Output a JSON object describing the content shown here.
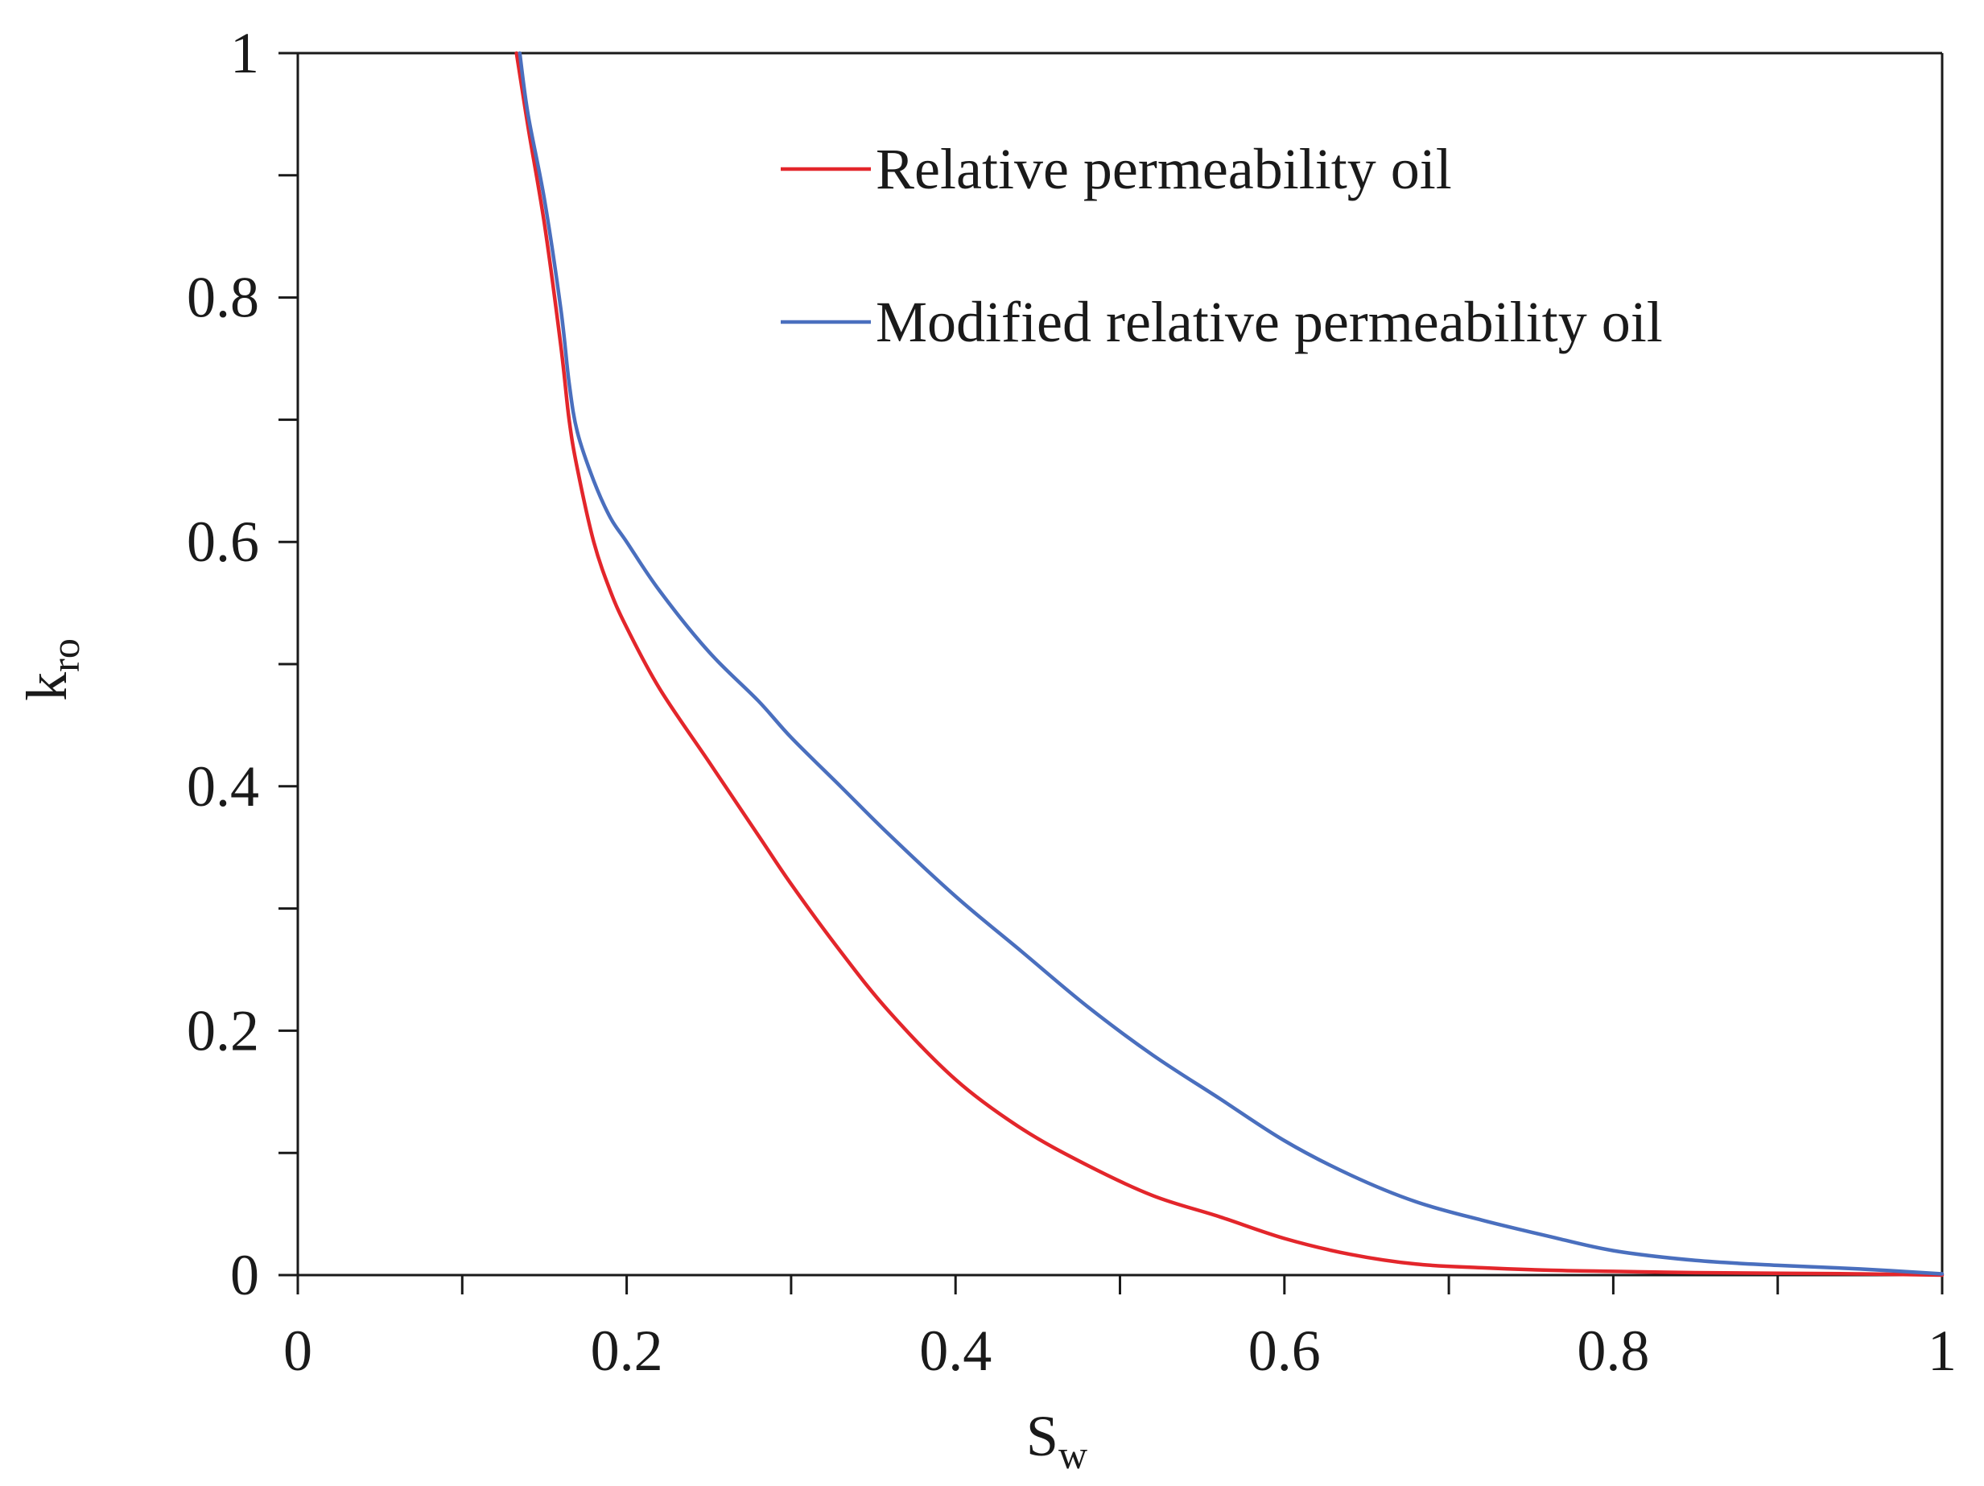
{
  "chart_data": {
    "type": "line",
    "title": "",
    "xlabel": {
      "main": "S",
      "sub": "w"
    },
    "ylabel": {
      "main": "k",
      "sub": "ro"
    },
    "xlim": [
      0,
      1
    ],
    "ylim": [
      0,
      1
    ],
    "x_ticks": [
      0,
      0.2,
      0.4,
      0.6,
      0.8,
      1
    ],
    "x_tick_labels": [
      "0",
      "0.2",
      "0.4",
      "0.6",
      "0.8",
      "1"
    ],
    "x_minor_ticks": [
      0.1,
      0.3,
      0.5,
      0.7,
      0.9
    ],
    "y_ticks": [
      0,
      0.2,
      0.4,
      0.6,
      0.8,
      1
    ],
    "y_tick_labels": [
      "0",
      "0.2",
      "0.4",
      "0.6",
      "0.8",
      "1"
    ],
    "y_minor_ticks": [
      0.1,
      0.3,
      0.5,
      0.7,
      0.9
    ],
    "grid": false,
    "legend_position": "top-right",
    "series": [
      {
        "name": "Relative permeability oil",
        "color": "#e3262b",
        "x": [
          0.133,
          0.14,
          0.15,
          0.16,
          0.165,
          0.17,
          0.18,
          0.19,
          0.2,
          0.22,
          0.25,
          0.28,
          0.3,
          0.33,
          0.36,
          0.4,
          0.44,
          0.48,
          0.52,
          0.56,
          0.6,
          0.64,
          0.68,
          0.72,
          0.76,
          0.8,
          0.85,
          0.9,
          0.95,
          1.0
        ],
        "y": [
          1.0,
          0.94,
          0.86,
          0.76,
          0.7,
          0.66,
          0.6,
          0.56,
          0.53,
          0.48,
          0.42,
          0.36,
          0.32,
          0.265,
          0.215,
          0.16,
          0.12,
          0.09,
          0.065,
          0.048,
          0.03,
          0.017,
          0.009,
          0.006,
          0.004,
          0.003,
          0.002,
          0.0015,
          0.001,
          0.0
        ]
      },
      {
        "name": "Modified relative permeability oil",
        "color": "#4a6fbe",
        "x": [
          0.135,
          0.14,
          0.15,
          0.16,
          0.165,
          0.17,
          0.18,
          0.19,
          0.2,
          0.22,
          0.25,
          0.28,
          0.3,
          0.33,
          0.36,
          0.4,
          0.44,
          0.48,
          0.52,
          0.56,
          0.6,
          0.64,
          0.68,
          0.72,
          0.76,
          0.8,
          0.85,
          0.9,
          0.95,
          1.0
        ],
        "y": [
          1.0,
          0.95,
          0.88,
          0.79,
          0.73,
          0.69,
          0.65,
          0.62,
          0.6,
          0.56,
          0.51,
          0.47,
          0.44,
          0.4,
          0.36,
          0.31,
          0.265,
          0.22,
          0.18,
          0.145,
          0.11,
          0.082,
          0.06,
          0.045,
          0.032,
          0.02,
          0.012,
          0.008,
          0.005,
          0.001
        ]
      }
    ]
  },
  "colors": {
    "axis": "#1a1a1a",
    "background": "#ffffff"
  }
}
